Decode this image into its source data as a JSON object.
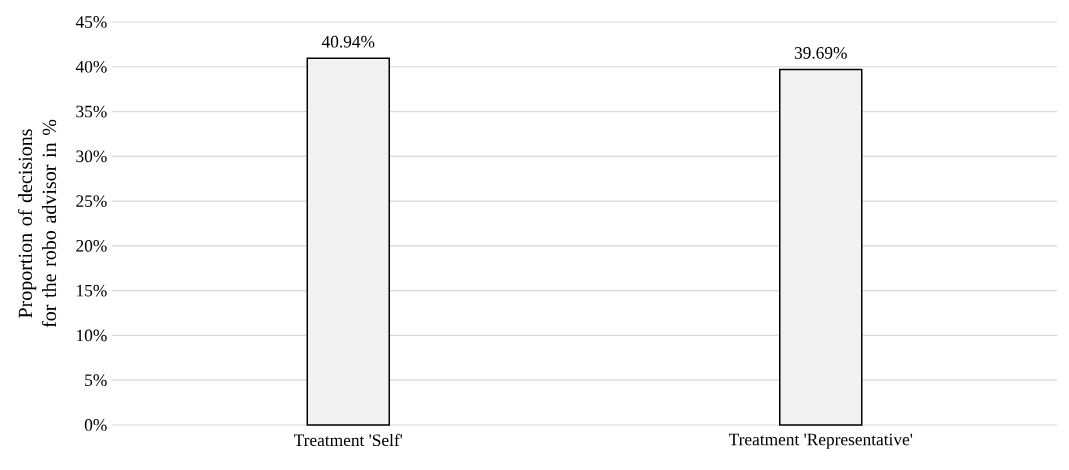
{
  "chart_data": {
    "type": "bar",
    "ylabel": "Proportion of decisions for the robo advisor in %",
    "categories": [
      "Treatment 'Self'",
      "Treatment 'Representative'"
    ],
    "values": [
      40.94,
      39.69
    ],
    "value_labels": [
      "40.94%",
      "39.69%"
    ],
    "color": "#f2f2f2",
    "ylim": [
      0,
      45
    ],
    "yticks": [
      {
        "value": 0,
        "label": "0%"
      },
      {
        "value": 5,
        "label": "5%"
      },
      {
        "value": 10,
        "label": "10%"
      },
      {
        "value": 15,
        "label": "15%"
      },
      {
        "value": 20,
        "label": "20%"
      },
      {
        "value": 25,
        "label": "25%"
      },
      {
        "value": 30,
        "label": "30%"
      },
      {
        "value": 35,
        "label": "35%"
      },
      {
        "value": 40,
        "label": "40%"
      },
      {
        "value": 45,
        "label": "45%"
      }
    ],
    "grid": "y"
  }
}
